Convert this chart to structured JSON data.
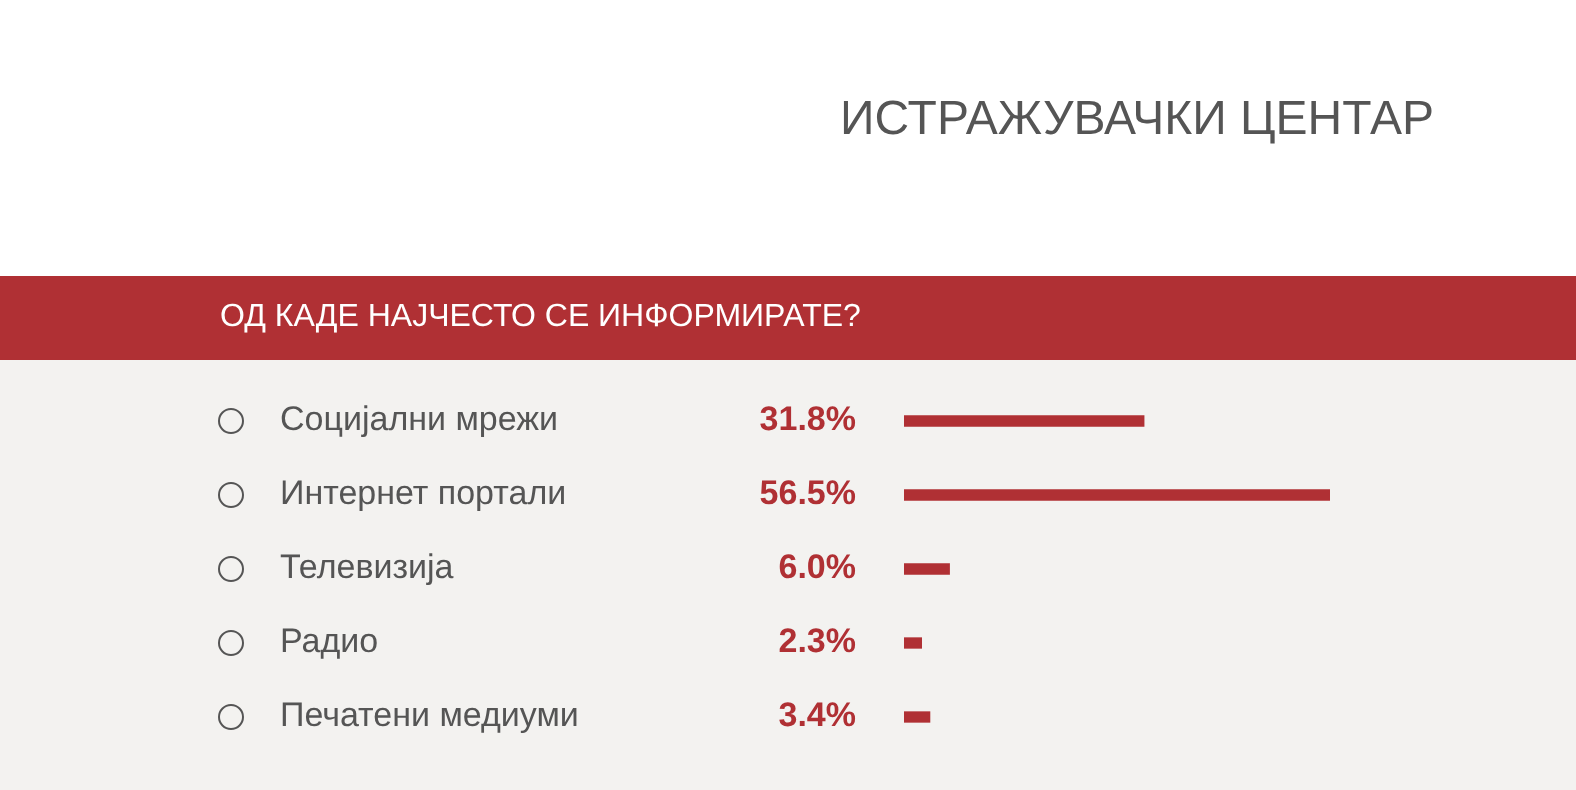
{
  "chart_data": {
    "type": "bar",
    "orientation": "horizontal",
    "title": "ОД КАДЕ НАЈЧЕСТО СЕ ИНФОРМИРАТЕ?",
    "subtitle": "ИСТРАЖУВАЧКИ ЦЕНТАР",
    "categories": [
      "Социјални мрежи",
      "Интернет портали",
      "Телевизија",
      "Радио",
      "Печатени медиуми"
    ],
    "values": [
      31.8,
      56.5,
      6.0,
      2.3,
      3.4
    ],
    "value_labels": [
      "31.8%",
      "56.5%",
      "6.0%",
      "2.3%",
      "3.4%"
    ],
    "color": "#b03034",
    "tick_labels": "y"
  }
}
